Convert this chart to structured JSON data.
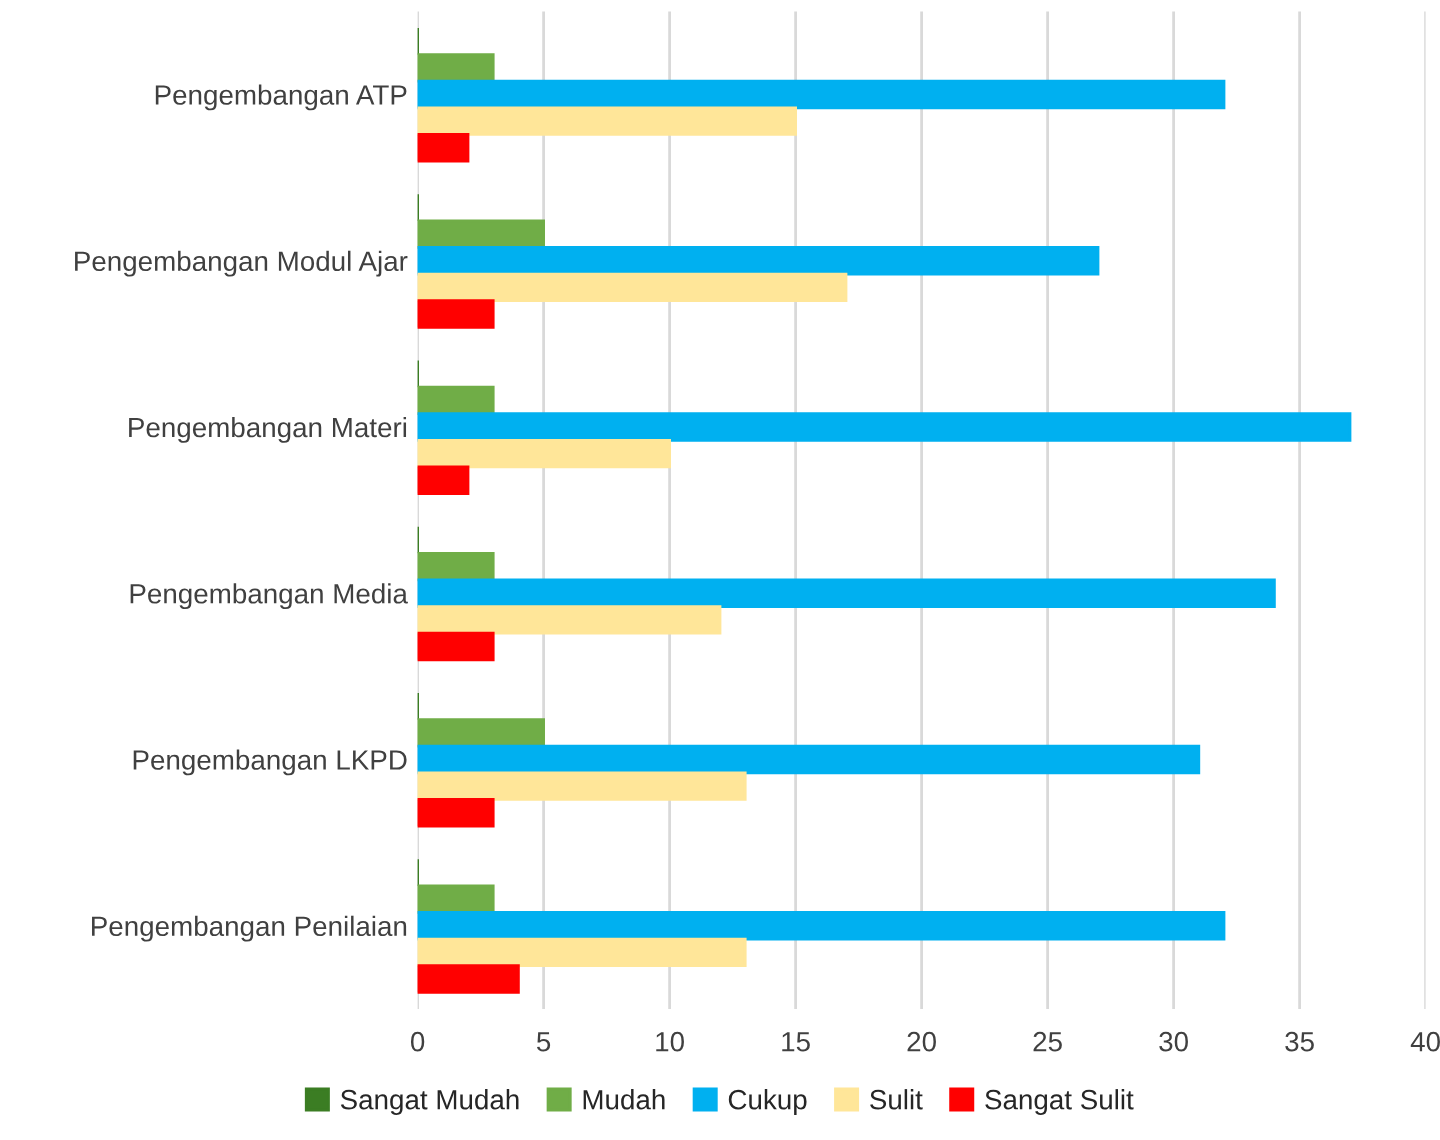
{
  "chart_data": {
    "type": "bar",
    "orientation": "horizontal",
    "categories": [
      "Pengembangan ATP",
      "Pengembangan Modul Ajar",
      "Pengembangan Materi",
      "Pengembangan Media",
      "Pengembangan LKPD",
      "Pengembangan Penilaian"
    ],
    "series": [
      {
        "name": "Sangat Mudah",
        "color": "#3b7d23",
        "values": [
          0,
          0,
          0,
          0,
          0,
          0
        ]
      },
      {
        "name": "Mudah",
        "color": "#70ad47",
        "values": [
          3,
          5,
          3,
          3,
          5,
          3
        ]
      },
      {
        "name": "Cukup",
        "color": "#00b0f0",
        "values": [
          32,
          27,
          37,
          34,
          31,
          32
        ]
      },
      {
        "name": "Sulit",
        "color": "#ffe699",
        "values": [
          15,
          17,
          10,
          12,
          13,
          13
        ]
      },
      {
        "name": "Sangat Sulit",
        "color": "#ff0000",
        "values": [
          2,
          3,
          2,
          3,
          3,
          4
        ]
      }
    ],
    "xlim": [
      0,
      40
    ],
    "xticks": [
      0,
      5,
      10,
      15,
      20,
      25,
      30,
      35,
      40
    ],
    "grid": "x",
    "legend": "bottom"
  }
}
